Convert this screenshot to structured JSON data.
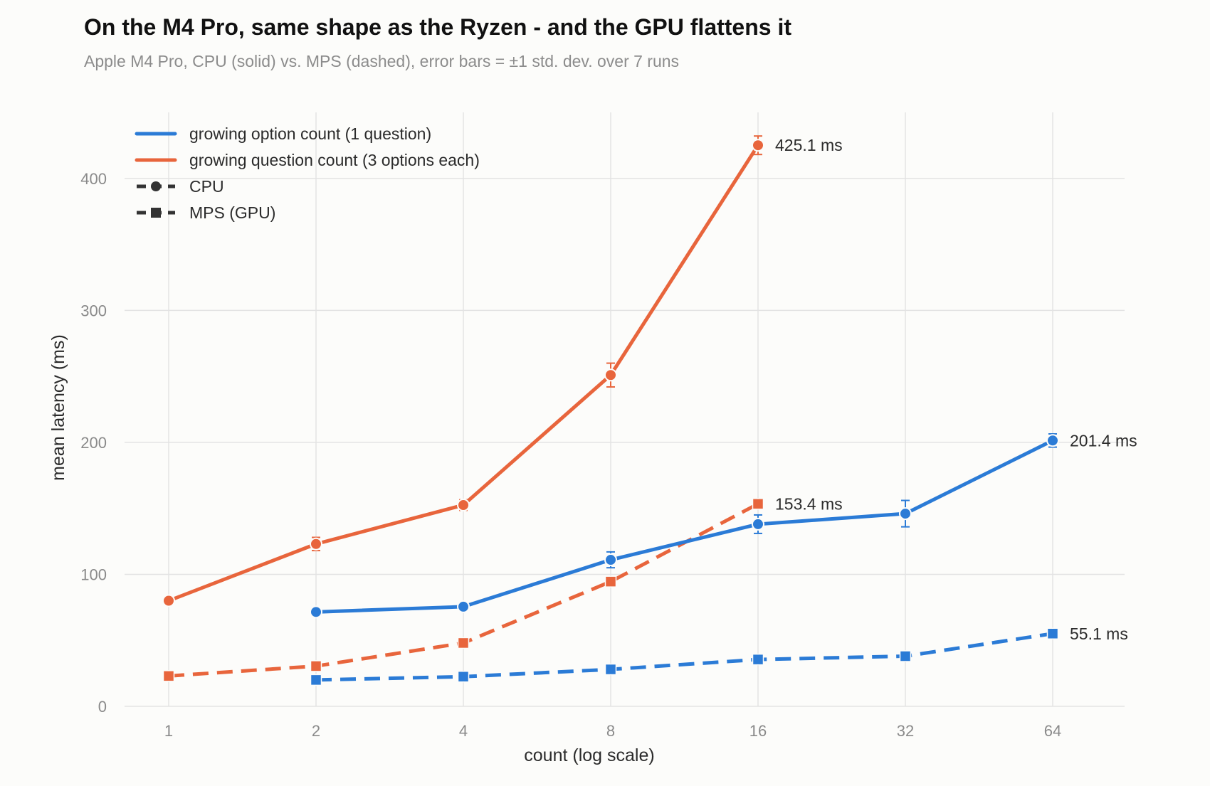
{
  "chart_data": {
    "type": "line",
    "title": "On the M4 Pro, same shape as the Ryzen - and the GPU flattens it",
    "subtitle": "Apple M4 Pro, CPU (solid) vs. MPS (dashed), error bars = ±1 std. dev. over 7 runs",
    "xlabel": "count (log scale)",
    "ylabel": "mean latency (ms)",
    "x_scale": "log2",
    "x_ticks": [
      "1",
      "2",
      "4",
      "8",
      "16",
      "32",
      "64"
    ],
    "y_ticks": [
      "0",
      "100",
      "200",
      "300",
      "400"
    ],
    "ylim": [
      0,
      450
    ],
    "grid": true,
    "legend_position": "top-left",
    "legend": [
      {
        "label": "growing option count (1 question)",
        "kind": "color",
        "color": "#2b7bd6"
      },
      {
        "label": "growing question count (3 options each)",
        "kind": "color",
        "color": "#e8653c"
      },
      {
        "label": "CPU",
        "kind": "style",
        "marker": "circle"
      },
      {
        "label": "MPS (GPU)",
        "kind": "style",
        "marker": "square"
      }
    ],
    "series": [
      {
        "group": "growing question count (3 options each)",
        "device": "CPU",
        "color": "#e8653c",
        "dashed": false,
        "marker": "circle",
        "x": [
          1,
          2,
          4,
          8,
          16
        ],
        "y": [
          80,
          123,
          152.5,
          251,
          425.1
        ],
        "err": [
          1.5,
          5,
          4,
          9,
          7
        ],
        "end_label": "425.1 ms"
      },
      {
        "group": "growing question count (3 options each)",
        "device": "MPS (GPU)",
        "color": "#e8653c",
        "dashed": true,
        "marker": "square",
        "x": [
          1,
          2,
          4,
          8,
          16
        ],
        "y": [
          23,
          30.5,
          48,
          94.5,
          153.4
        ],
        "err": [
          0,
          0,
          0,
          0,
          0
        ],
        "end_label": "153.4 ms"
      },
      {
        "group": "growing option count (1 question)",
        "device": "CPU",
        "color": "#2b7bd6",
        "dashed": false,
        "marker": "circle",
        "x": [
          2,
          4,
          8,
          16,
          32,
          64
        ],
        "y": [
          71.5,
          75.5,
          111,
          138,
          146,
          201.4
        ],
        "err": [
          1,
          1.5,
          6,
          7,
          10,
          5
        ],
        "end_label": "201.4 ms"
      },
      {
        "group": "growing option count (1 question)",
        "device": "MPS (GPU)",
        "color": "#2b7bd6",
        "dashed": true,
        "marker": "square",
        "x": [
          2,
          4,
          8,
          16,
          32,
          64
        ],
        "y": [
          20,
          22.5,
          28,
          35.5,
          38,
          55.1
        ],
        "err": [
          0,
          0,
          0,
          0,
          0,
          0
        ],
        "end_label": "55.1 ms"
      }
    ]
  }
}
